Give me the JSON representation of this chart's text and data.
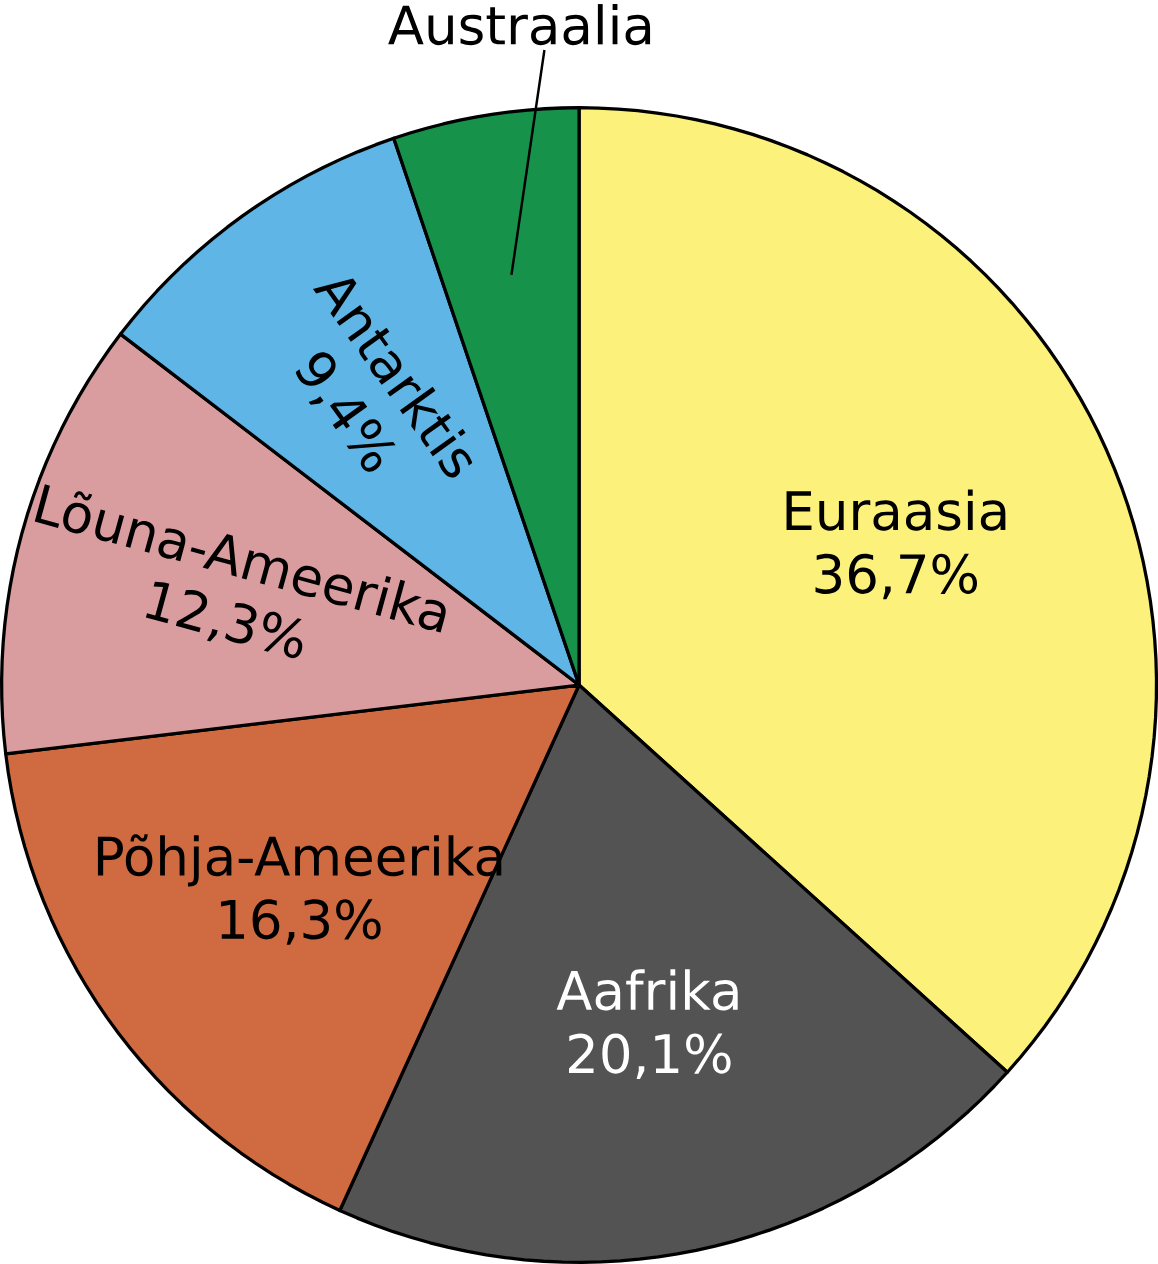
{
  "chart_data": {
    "type": "pie",
    "categories": [
      "Euraasia",
      "Aafrika",
      "Põhja-Ameerika",
      "Lõuna-Ameerika",
      "Antarktis",
      "Austraalia"
    ],
    "values": [
      36.7,
      20.1,
      16.3,
      12.3,
      9.4,
      5.2
    ],
    "value_labels": [
      "36,7%",
      "20,1%",
      "16,3%",
      "12,3%",
      "9,4%",
      null
    ],
    "colors": [
      "#fcf17b",
      "#535353",
      "#d06a40",
      "#d99c9f",
      "#5fb5e6",
      "#16924a"
    ]
  }
}
